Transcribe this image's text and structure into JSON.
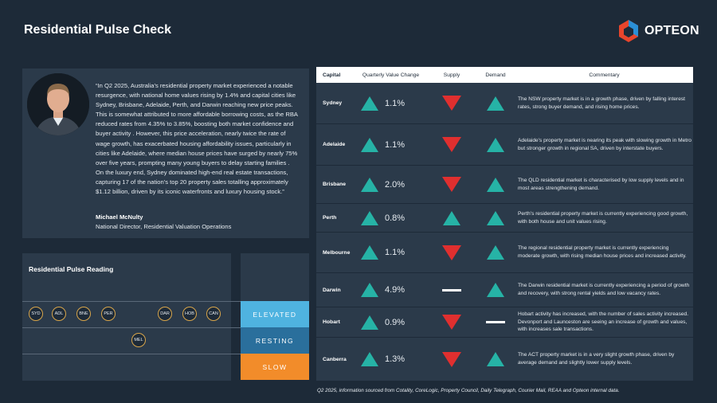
{
  "header": {
    "title": "Residential Pulse Check",
    "logo_text": "OPTEON"
  },
  "quote": {
    "text": "“In Q2 2025, Australia’s residential property market experienced a notable resurgence, with national home values rising by 1.4% and capital cities like Sydney, Brisbane, Adelaide, Perth, and Darwin reaching new price peaks. This is somewhat attributed to more affordable borrowing costs, as the RBA reduced rates from 4.35% to 3.85%, boosting both market confidence and buyer activity . However, this price acceleration, nearly twice the rate of wage growth, has exacerbated housing affordability issues, particularly in cities like Adelaide, where median house prices have surged by nearly 75% over five years, prompting many young buyers to delay starting families . On the luxury end, Sydney dominated high-end real estate transactions, capturing 17 of the nation’s top 20 property sales totalling approximately $1.12 billion, driven by its iconic waterfronts and luxury housing stock.”",
    "author": "Michael McNulty",
    "role": "National Director, Residential Valuation Operations"
  },
  "pulse": {
    "title": "Residential Pulse Reading",
    "bands": {
      "elevated": "ELEVATED",
      "resting": "RESTING",
      "slow": "SLOW"
    },
    "cities": [
      {
        "code": "SYD",
        "level": "elevated"
      },
      {
        "code": "ADL",
        "level": "elevated"
      },
      {
        "code": "BNE",
        "level": "elevated"
      },
      {
        "code": "PER",
        "level": "elevated"
      },
      {
        "code": "DAR",
        "level": "elevated"
      },
      {
        "code": "HOB",
        "level": "elevated"
      },
      {
        "code": "CAN",
        "level": "elevated"
      },
      {
        "code": "MEL",
        "level": "resting"
      }
    ]
  },
  "table": {
    "headers": {
      "capital": "Capital",
      "quarterly_value_change": "Quarterly Value Change",
      "supply": "Supply",
      "demand": "Demand",
      "commentary": "Commentary"
    },
    "rows": [
      {
        "capital": "Sydney",
        "change": "1.1%",
        "change_dir": "up",
        "supply": "down",
        "demand": "up",
        "commentary": "The NSW property market is in a growth phase, driven by falling interest rates, strong buyer demand, and rising home prices."
      },
      {
        "capital": "Adelaide",
        "change": "1.1%",
        "change_dir": "up",
        "supply": "down",
        "demand": "up",
        "commentary": "Adelaide’s property market is nearing its peak with slowing growth in Metro but stronger growth in regional SA, driven by interstate buyers."
      },
      {
        "capital": "Brisbane",
        "change": "2.0%",
        "change_dir": "up",
        "supply": "down",
        "demand": "up",
        "commentary": "The QLD residential market is characterised by low supply levels and in most areas strengthening demand."
      },
      {
        "capital": "Perth",
        "change": "0.8%",
        "change_dir": "up",
        "supply": "up",
        "demand": "up",
        "commentary": "Perth’s residential property market is currently experiencing good growth, with both house and unit values rising."
      },
      {
        "capital": "Melbourne",
        "change": "1.1%",
        "change_dir": "up",
        "supply": "down",
        "demand": "up",
        "commentary": "The regional residential property market is currently experiencing moderate growth, with rising median house prices and increased activity."
      },
      {
        "capital": "Darwin",
        "change": "4.9%",
        "change_dir": "up",
        "supply": "flat",
        "demand": "up",
        "commentary": "The Darwin residential market is currently experiencing a period of growth and recovery, with strong rental yields and low vacancy rates."
      },
      {
        "capital": "Hobart",
        "change": "0.9%",
        "change_dir": "up",
        "supply": "down",
        "demand": "flat",
        "commentary": "Hobart activity has increased, with the number of sales activity increased. Devonport and Launceston are seeing an increase of growth and values, with increases sale transactions."
      },
      {
        "capital": "Canberra",
        "change": "1.3%",
        "change_dir": "up",
        "supply": "down",
        "demand": "up",
        "commentary": "The ACT property market is in a very slight growth phase, driven by average demand and slightly lower supply levels."
      }
    ]
  },
  "footer": {
    "source": "Q2 2025, information sourced from Cotality, CoreLogic, Property Council, Daily Telegraph, Courier Mail, REAA and Opteon internal data."
  },
  "colors": {
    "background": "#1d2a38",
    "panel": "#2b3a4a",
    "up": "#26b3a6",
    "down": "#e02f2f",
    "elevated": "#4fb3e0",
    "resting": "#2a6f9c",
    "slow": "#f28c2a"
  },
  "icons": {
    "up": "triangle-up-icon",
    "down": "triangle-down-icon",
    "flat": "dash-icon"
  }
}
